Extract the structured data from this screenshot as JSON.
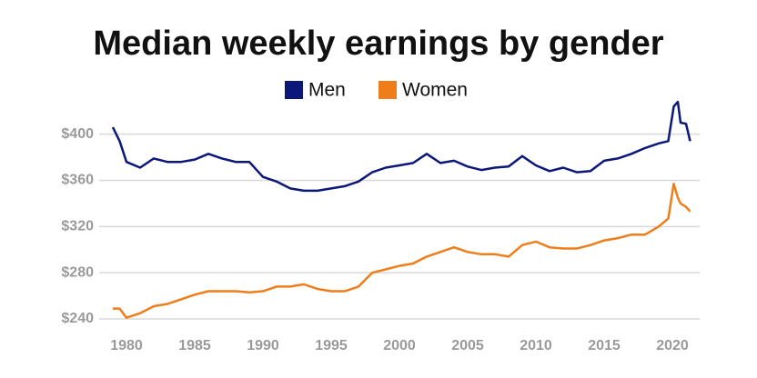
{
  "chart_data": {
    "type": "line",
    "title": "Median weekly earnings by gender",
    "x": [
      1979,
      1979.5,
      1980,
      1981,
      1982,
      1983,
      1984,
      1985,
      1986,
      1987,
      1988,
      1989,
      1990,
      1991,
      1992,
      1993,
      1994,
      1995,
      1996,
      1997,
      1998,
      1999,
      2000,
      2001,
      2002,
      2003,
      2004,
      2005,
      2006,
      2007,
      2008,
      2009,
      2010,
      2011,
      2012,
      2013,
      2014,
      2015,
      2016,
      2017,
      2018,
      2019,
      2019.7,
      2020.1,
      2020.4,
      2020.6,
      2021,
      2021.3
    ],
    "series": [
      {
        "name": "Men",
        "color": "#0c1879",
        "values": [
          406,
          394,
          376,
          371,
          379,
          376,
          376,
          378,
          383,
          379,
          376,
          376,
          363,
          359,
          353,
          351,
          351,
          353,
          355,
          359,
          367,
          371,
          373,
          375,
          383,
          375,
          377,
          372,
          369,
          371,
          372,
          381,
          373,
          368,
          371,
          367,
          368,
          377,
          379,
          383,
          388,
          392,
          394,
          424,
          428,
          410,
          409,
          394
        ]
      },
      {
        "name": "Women",
        "color": "#ef7d1a",
        "values": [
          249,
          249,
          241,
          245,
          251,
          253,
          257,
          261,
          264,
          264,
          264,
          263,
          264,
          268,
          268,
          270,
          266,
          264,
          264,
          268,
          280,
          283,
          286,
          288,
          294,
          298,
          302,
          298,
          296,
          296,
          294,
          304,
          307,
          302,
          301,
          301,
          304,
          308,
          310,
          313,
          313,
          320,
          327,
          357,
          345,
          340,
          337,
          333
        ]
      }
    ],
    "xlim": [
      1978,
      2022
    ],
    "xticks": [
      1980,
      1985,
      1990,
      1995,
      2000,
      2005,
      2010,
      2015,
      2020
    ],
    "ylim": [
      229,
      432
    ],
    "yticks": [
      {
        "value": 240,
        "label": "$240"
      },
      {
        "value": 280,
        "label": "$280"
      },
      {
        "value": 320,
        "label": "$320"
      },
      {
        "value": 360,
        "label": "$360"
      },
      {
        "value": 400,
        "label": "$400"
      }
    ],
    "grid": true
  }
}
